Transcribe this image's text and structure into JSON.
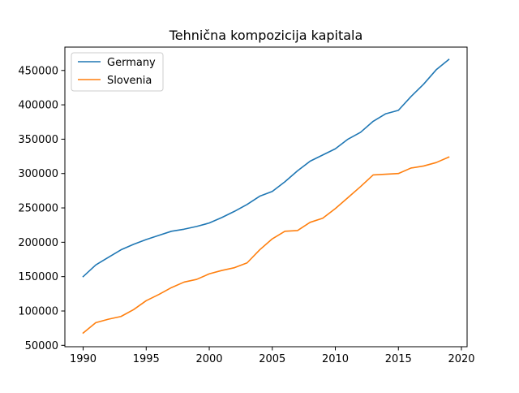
{
  "chart_data": {
    "type": "line",
    "title": "Tehnična kompozicija kapitala",
    "xlabel": "",
    "ylabel": "",
    "xlim": [
      1988.55,
      2020.45
    ],
    "ylim": [
      48000,
      484000
    ],
    "grid": false,
    "legend_position": "top-left",
    "x": [
      1990,
      1991,
      1992,
      1993,
      1994,
      1995,
      1996,
      1997,
      1998,
      1999,
      2000,
      2001,
      2002,
      2003,
      2004,
      2005,
      2006,
      2007,
      2008,
      2009,
      2010,
      2011,
      2012,
      2013,
      2014,
      2015,
      2016,
      2017,
      2018,
      2019
    ],
    "x_ticks": [
      1990,
      1995,
      2000,
      2005,
      2010,
      2015,
      2020
    ],
    "x_tick_labels": [
      "1990",
      "1995",
      "2000",
      "2005",
      "2010",
      "2015",
      "2020"
    ],
    "y_ticks": [
      50000,
      100000,
      150000,
      200000,
      250000,
      300000,
      350000,
      400000,
      450000
    ],
    "y_tick_labels": [
      "50000",
      "100000",
      "150000",
      "200000",
      "250000",
      "300000",
      "350000",
      "400000",
      "450000"
    ],
    "series": [
      {
        "name": "Germany",
        "color": "#1f77b4",
        "values": [
          150000,
          167000,
          178000,
          189000,
          197000,
          204000,
          210000,
          216000,
          219000,
          223000,
          228000,
          236000,
          245000,
          255000,
          267000,
          274000,
          288000,
          304000,
          318000,
          327000,
          336000,
          350000,
          360000,
          376000,
          387000,
          392000,
          412000,
          430000,
          451000,
          466000
        ]
      },
      {
        "name": "Slovenia",
        "color": "#ff7f0e",
        "values": [
          68000,
          83000,
          88000,
          92000,
          102000,
          115000,
          124000,
          134000,
          142000,
          146000,
          154000,
          159000,
          163000,
          170000,
          189000,
          205000,
          216000,
          217000,
          229000,
          235000,
          249000,
          265000,
          281000,
          298000,
          299000,
          300000,
          308000,
          311000,
          316000,
          324000
        ]
      }
    ]
  }
}
